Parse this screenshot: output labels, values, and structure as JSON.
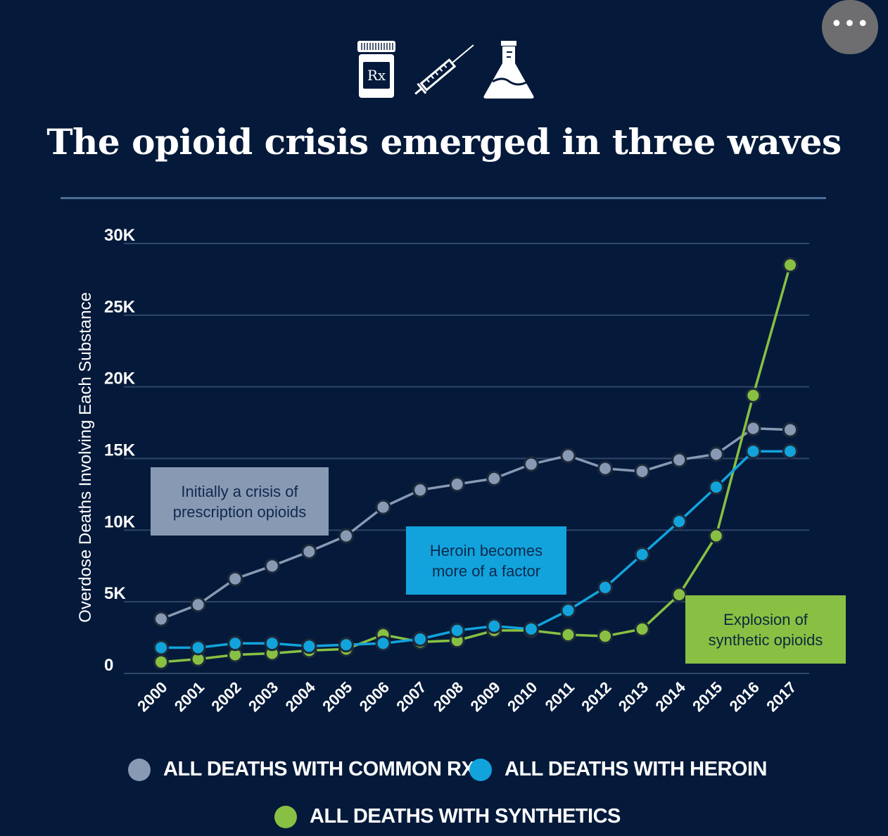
{
  "title": "The opioid crisis emerged in three waves",
  "more_button": {
    "label": "•••"
  },
  "header_icons": [
    {
      "name": "prescription-bottle-icon",
      "text": "Rx"
    },
    {
      "name": "syringe-icon"
    },
    {
      "name": "flask-icon"
    }
  ],
  "colors": {
    "background": "#051a3a",
    "rx": "#8899b4",
    "heroin": "#12a3dd",
    "synthetics": "#88c043",
    "grid": "#2e4668",
    "rule": "#4b6c96"
  },
  "chart_data": {
    "type": "line",
    "ylabel": "Overdose Deaths Involving Each Substance",
    "xlabel": "",
    "ylim": [
      0,
      30000
    ],
    "yticks": [
      0,
      5000,
      10000,
      15000,
      20000,
      25000,
      30000
    ],
    "ytick_labels": [
      "0",
      "5K",
      "10K",
      "15K",
      "20K",
      "25K",
      "30K"
    ],
    "grid": true,
    "legend_position": "bottom",
    "x": [
      "2000",
      "2001",
      "2002",
      "2003",
      "2004",
      "2005",
      "2006",
      "2007",
      "2008",
      "2009",
      "2010",
      "2011",
      "2012",
      "2013",
      "2014",
      "2015",
      "2016",
      "2017"
    ],
    "series": [
      {
        "name": "ALL DEATHS WITH COMMON RX",
        "color": "#8899b4",
        "values": [
          3800,
          4800,
          6600,
          7500,
          8500,
          9600,
          11600,
          12800,
          13200,
          13600,
          14600,
          15200,
          14300,
          14100,
          14900,
          15300,
          17100,
          17000
        ]
      },
      {
        "name": "ALL DEATHS WITH HEROIN",
        "color": "#12a3dd",
        "values": [
          1800,
          1800,
          2100,
          2100,
          1900,
          2000,
          2100,
          2400,
          3000,
          3300,
          3100,
          4400,
          6000,
          8300,
          10600,
          13000,
          15500,
          15500
        ]
      },
      {
        "name": "ALL DEATHS WITH SYNTHETICS",
        "color": "#88c043",
        "values": [
          800,
          1000,
          1300,
          1400,
          1600,
          1700,
          2700,
          2200,
          2300,
          3000,
          3000,
          2700,
          2600,
          3100,
          5500,
          9600,
          19400,
          28500
        ]
      }
    ],
    "annotations": [
      {
        "lines": [
          "Initially a crisis of",
          "prescription opioids"
        ],
        "series": "ALL DEATHS WITH COMMON RX",
        "fill": "#8899b4",
        "text_color": "#102a4c"
      },
      {
        "lines": [
          "Heroin becomes",
          "more of a factor"
        ],
        "series": "ALL DEATHS WITH HEROIN",
        "fill": "#12a3dd",
        "text_color": "#0c2a4c"
      },
      {
        "lines": [
          "Explosion of",
          "synthetic opioids"
        ],
        "series": "ALL DEATHS WITH SYNTHETICS",
        "fill": "#88c043",
        "text_color": "#0c2a3c"
      }
    ]
  }
}
